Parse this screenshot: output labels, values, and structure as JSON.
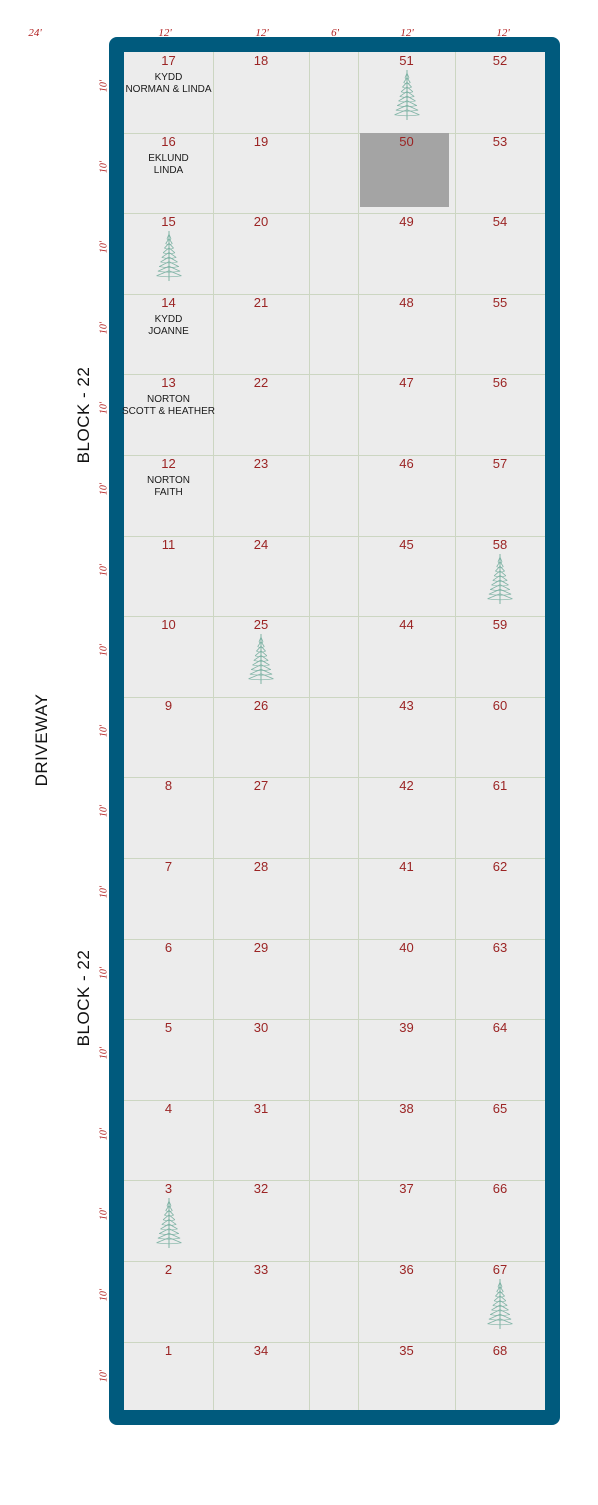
{
  "top_dimensions": [
    "24'",
    "12'",
    "12'",
    "6'",
    "12'",
    "12'"
  ],
  "row_dimension": "10'",
  "labels": {
    "block_top": "BLOCK - 22",
    "driveway": "DRIVEWAY",
    "block_bottom": "BLOCK - 22"
  },
  "colors": {
    "frame": "#005a7d",
    "plot_background": "#ececec",
    "plot_number": "#9b2424",
    "dimension": "#b01e1e",
    "reserved_plot": "#a4a4a4",
    "tree": "#7fb3a5"
  },
  "columns": [
    {
      "plots": [
        "17",
        "16",
        "15",
        "14",
        "13",
        "12",
        "11",
        "10",
        "9",
        "8",
        "7",
        "6",
        "5",
        "4",
        "3",
        "2",
        "1"
      ]
    },
    {
      "plots": [
        "18",
        "19",
        "20",
        "21",
        "22",
        "23",
        "24",
        "25",
        "26",
        "27",
        "28",
        "29",
        "30",
        "31",
        "32",
        "33",
        "34"
      ]
    },
    {
      "plots": []
    },
    {
      "plots": [
        "51",
        "50",
        "49",
        "48",
        "47",
        "46",
        "45",
        "44",
        "43",
        "42",
        "41",
        "40",
        "39",
        "38",
        "37",
        "36",
        "35"
      ]
    },
    {
      "plots": [
        "52",
        "53",
        "54",
        "55",
        "56",
        "57",
        "58",
        "59",
        "60",
        "61",
        "62",
        "63",
        "64",
        "65",
        "66",
        "67",
        "68"
      ]
    }
  ],
  "owners": [
    {
      "plot": "17",
      "name": "KYDD\nNORMAN & LINDA"
    },
    {
      "plot": "16",
      "name": "EKLUND\nLINDA"
    },
    {
      "plot": "14",
      "name": "KYDD\nJOANNE"
    },
    {
      "plot": "13",
      "name": "NORTON\nSCOTT & HEATHER"
    },
    {
      "plot": "12",
      "name": "NORTON\nFAITH"
    }
  ],
  "trees": [
    "51",
    "15",
    "58",
    "25",
    "3",
    "67"
  ],
  "reserved": [
    "50"
  ]
}
